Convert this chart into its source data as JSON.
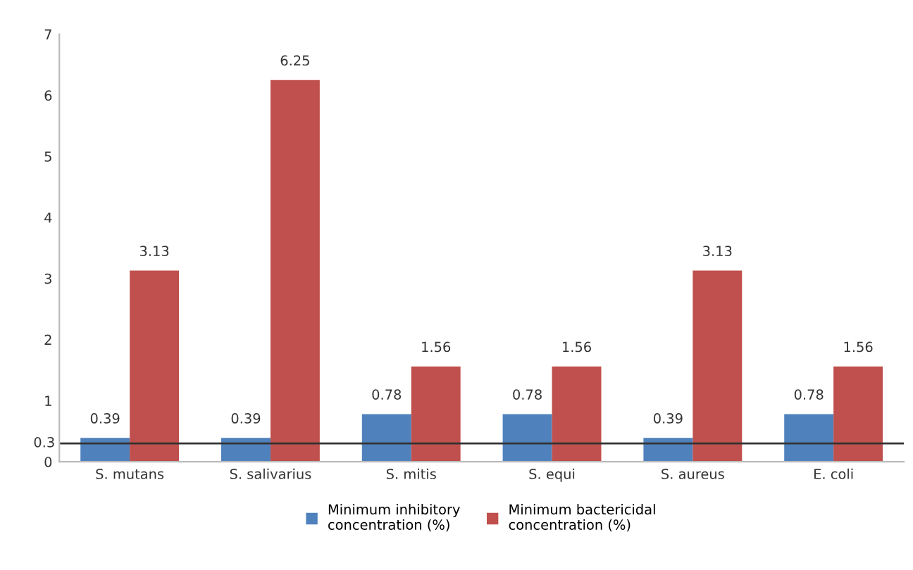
{
  "chart_data": {
    "type": "bar",
    "categories": [
      "S. mutans",
      "S. salivarius",
      "S. mitis",
      "S. equi",
      "S. aureus",
      "E. coli"
    ],
    "series": [
      {
        "name": "Minimum inhibitory\nconcentration (%)",
        "color": "#4f81bd",
        "values": [
          0.39,
          0.39,
          0.78,
          0.78,
          0.39,
          0.78
        ]
      },
      {
        "name": "Minimum bactericidal\nconcentration (%)",
        "color": "#c0504d",
        "values": [
          3.13,
          6.25,
          1.56,
          1.56,
          3.13,
          1.56
        ]
      }
    ],
    "ylim": [
      0,
      7
    ],
    "yticks": [
      0,
      1,
      2,
      3,
      4,
      5,
      6,
      7
    ],
    "ref_lines": [
      {
        "axis": "y",
        "value": 0.3,
        "label": "0.3",
        "color": "#333333"
      }
    ],
    "data_labels": true,
    "grid": false,
    "legend": "bottom"
  }
}
